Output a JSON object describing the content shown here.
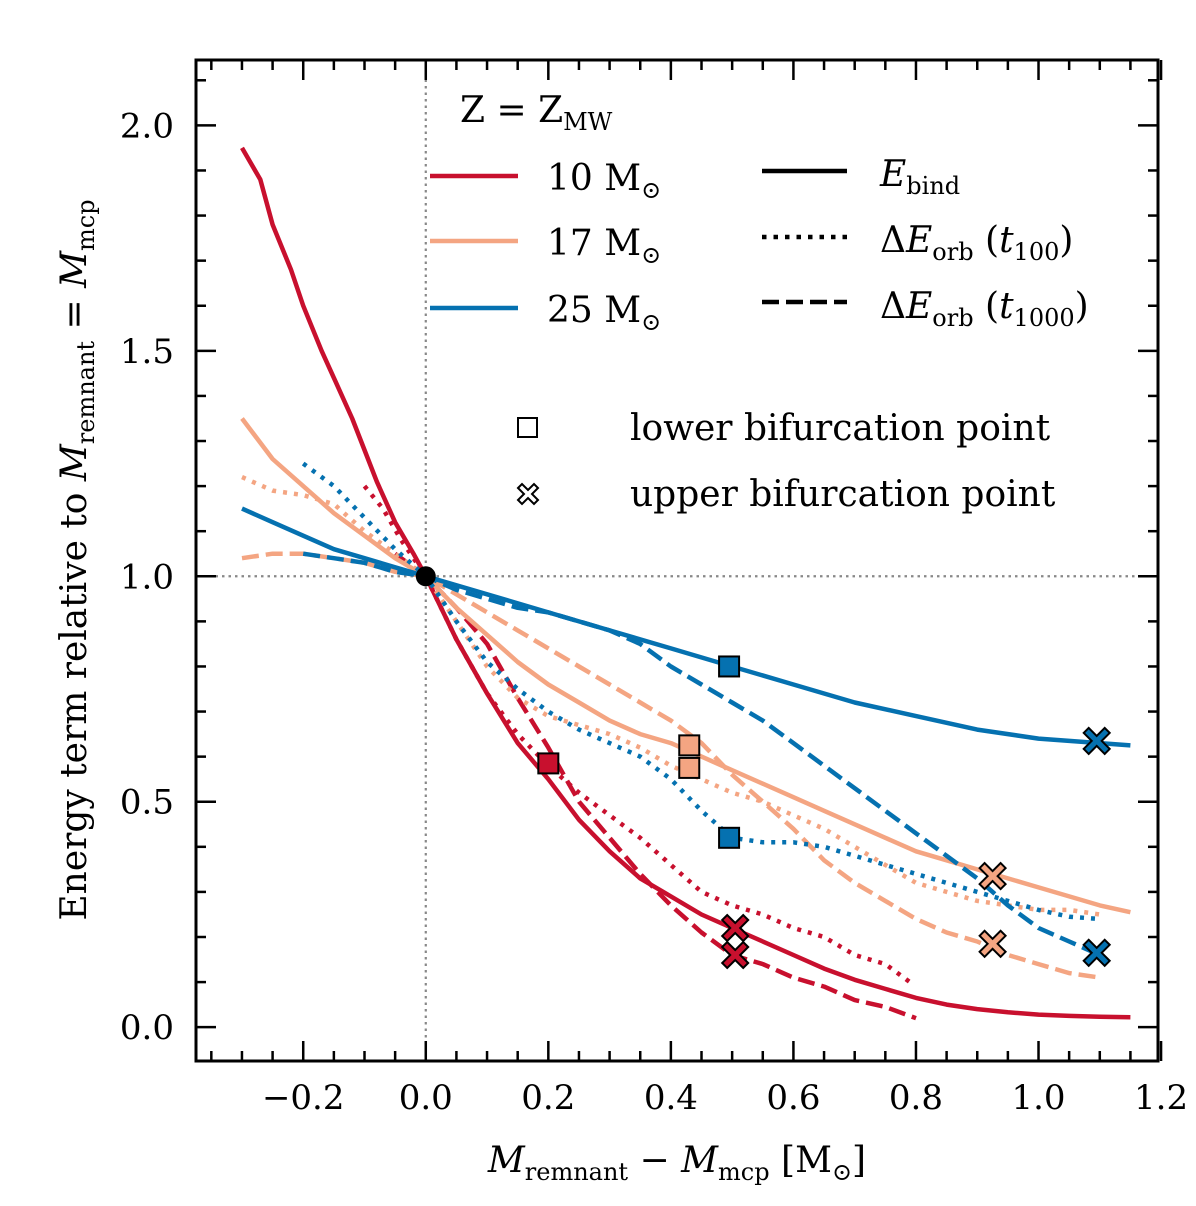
{
  "chart_data": {
    "type": "line",
    "xlabel": "M_remnant − M_mcp [M⊙]",
    "ylabel": "Energy term relative to M_remnant = M_mcp",
    "xlim": [
      -0.375,
      1.195
    ],
    "ylim": [
      -0.075,
      2.145
    ],
    "x_ticks": [
      -0.2,
      0.0,
      0.2,
      0.4,
      0.6,
      0.8,
      1.0,
      1.2
    ],
    "x_tick_labels": [
      "−0.2",
      "0.0",
      "0.2",
      "0.4",
      "0.6",
      "0.8",
      "1.0",
      "1.2"
    ],
    "y_ticks": [
      0.0,
      0.5,
      1.0,
      1.5,
      2.0
    ],
    "y_tick_labels": [
      "0.0",
      "0.5",
      "1.0",
      "1.5",
      "2.0"
    ],
    "reference_lines": {
      "x": 0.0,
      "y": 1.0
    },
    "reference_point": [
      0.0,
      1.0
    ],
    "legend": {
      "title": "Z = Z_MW",
      "mass_entries": [
        {
          "label": "10 M⊙",
          "color": "#c8102e"
        },
        {
          "label": "17 M⊙",
          "color": "#f4a582"
        },
        {
          "label": "25 M⊙",
          "color": "#0571b0"
        }
      ],
      "style_entries": [
        {
          "label": "E_bind",
          "dash": "solid"
        },
        {
          "label": "ΔE_orb (t_100)",
          "dash": "dotted"
        },
        {
          "label": "ΔE_orb (t_1000)",
          "dash": "dashed"
        }
      ],
      "marker_entries": [
        {
          "label": "lower bifurcation point",
          "marker": "square"
        },
        {
          "label": "upper bifurcation point",
          "marker": "x"
        }
      ]
    },
    "series": [
      {
        "name": "10 M⊙ E_bind",
        "color": "#c8102e",
        "dash": "solid",
        "x": [
          -0.3,
          -0.27,
          -0.25,
          -0.22,
          -0.2,
          -0.17,
          -0.15,
          -0.12,
          -0.1,
          -0.08,
          -0.05,
          -0.02,
          0.0,
          0.05,
          0.1,
          0.15,
          0.2,
          0.25,
          0.3,
          0.35,
          0.4,
          0.45,
          0.5,
          0.55,
          0.6,
          0.65,
          0.7,
          0.75,
          0.8,
          0.85,
          0.9,
          0.95,
          1.0,
          1.05,
          1.1,
          1.15
        ],
        "y": [
          1.95,
          1.88,
          1.78,
          1.68,
          1.6,
          1.5,
          1.44,
          1.35,
          1.28,
          1.21,
          1.12,
          1.05,
          1.0,
          0.86,
          0.74,
          0.63,
          0.55,
          0.46,
          0.39,
          0.33,
          0.29,
          0.25,
          0.22,
          0.19,
          0.16,
          0.13,
          0.105,
          0.085,
          0.065,
          0.05,
          0.04,
          0.033,
          0.028,
          0.025,
          0.023,
          0.022
        ]
      },
      {
        "name": "10 M⊙ ΔE_orb (t_100)",
        "color": "#c8102e",
        "dash": "dotted",
        "x": [
          -0.1,
          -0.07,
          -0.04,
          0.0,
          0.05,
          0.1,
          0.15,
          0.2,
          0.25,
          0.3,
          0.35,
          0.4,
          0.45,
          0.5,
          0.55,
          0.6,
          0.65,
          0.7,
          0.75,
          0.79
        ],
        "y": [
          1.2,
          1.15,
          1.08,
          1.0,
          0.86,
          0.74,
          0.65,
          0.58,
          0.52,
          0.47,
          0.42,
          0.36,
          0.3,
          0.27,
          0.25,
          0.22,
          0.2,
          0.16,
          0.14,
          0.1
        ]
      },
      {
        "name": "10 M⊙ ΔE_orb (t_1000)",
        "color": "#c8102e",
        "dash": "dashed",
        "x": [
          -0.05,
          -0.02,
          0.0,
          0.05,
          0.1,
          0.15,
          0.2,
          0.25,
          0.3,
          0.35,
          0.4,
          0.45,
          0.5,
          0.55,
          0.6,
          0.65,
          0.7,
          0.75,
          0.8
        ],
        "y": [
          1.05,
          1.02,
          1.0,
          0.93,
          0.85,
          0.73,
          0.62,
          0.5,
          0.42,
          0.34,
          0.27,
          0.21,
          0.16,
          0.14,
          0.11,
          0.09,
          0.06,
          0.045,
          0.02
        ]
      },
      {
        "name": "17 M⊙ E_bind",
        "color": "#f4a582",
        "dash": "solid",
        "x": [
          -0.3,
          -0.25,
          -0.2,
          -0.15,
          -0.1,
          -0.05,
          0.0,
          0.05,
          0.1,
          0.15,
          0.2,
          0.25,
          0.3,
          0.35,
          0.4,
          0.45,
          0.5,
          0.55,
          0.6,
          0.65,
          0.7,
          0.75,
          0.8,
          0.85,
          0.9,
          0.95,
          1.0,
          1.05,
          1.1,
          1.15
        ],
        "y": [
          1.35,
          1.26,
          1.2,
          1.14,
          1.09,
          1.04,
          1.0,
          0.93,
          0.87,
          0.81,
          0.76,
          0.72,
          0.68,
          0.65,
          0.63,
          0.6,
          0.57,
          0.54,
          0.51,
          0.48,
          0.45,
          0.42,
          0.39,
          0.37,
          0.35,
          0.33,
          0.31,
          0.29,
          0.27,
          0.255
        ]
      },
      {
        "name": "17 M⊙ ΔE_orb (t_100)",
        "color": "#f4a582",
        "dash": "dotted",
        "x": [
          -0.3,
          -0.25,
          -0.2,
          -0.15,
          -0.1,
          -0.05,
          0.0,
          0.05,
          0.1,
          0.15,
          0.2,
          0.25,
          0.3,
          0.35,
          0.4,
          0.45,
          0.5,
          0.55,
          0.6,
          0.65,
          0.7,
          0.75,
          0.8,
          0.85,
          0.9,
          0.95,
          1.0,
          1.05,
          1.1
        ],
        "y": [
          1.22,
          1.19,
          1.18,
          1.16,
          1.1,
          1.05,
          1.0,
          0.9,
          0.8,
          0.73,
          0.69,
          0.67,
          0.65,
          0.62,
          0.58,
          0.55,
          0.52,
          0.5,
          0.47,
          0.44,
          0.4,
          0.36,
          0.32,
          0.3,
          0.28,
          0.27,
          0.26,
          0.26,
          0.25
        ]
      },
      {
        "name": "17 M⊙ ΔE_orb (t_1000)",
        "color": "#f4a582",
        "dash": "dashed",
        "x": [
          -0.3,
          -0.25,
          -0.2,
          -0.15,
          -0.1,
          -0.05,
          0.0,
          0.05,
          0.1,
          0.15,
          0.2,
          0.25,
          0.3,
          0.35,
          0.4,
          0.45,
          0.5,
          0.55,
          0.6,
          0.65,
          0.7,
          0.75,
          0.8,
          0.85,
          0.9,
          0.95,
          1.0,
          1.05,
          1.1
        ],
        "y": [
          1.04,
          1.05,
          1.05,
          1.04,
          1.03,
          1.01,
          1.0,
          0.96,
          0.92,
          0.88,
          0.84,
          0.8,
          0.76,
          0.72,
          0.68,
          0.63,
          0.56,
          0.5,
          0.44,
          0.37,
          0.32,
          0.28,
          0.24,
          0.21,
          0.19,
          0.16,
          0.14,
          0.12,
          0.11
        ]
      },
      {
        "name": "25 M⊙ E_bind",
        "color": "#0571b0",
        "dash": "solid",
        "x": [
          -0.3,
          -0.25,
          -0.2,
          -0.15,
          -0.1,
          -0.05,
          0.0,
          0.1,
          0.2,
          0.3,
          0.4,
          0.5,
          0.6,
          0.7,
          0.8,
          0.9,
          1.0,
          1.1,
          1.15
        ],
        "y": [
          1.15,
          1.12,
          1.09,
          1.06,
          1.04,
          1.02,
          1.0,
          0.96,
          0.92,
          0.88,
          0.84,
          0.8,
          0.76,
          0.72,
          0.69,
          0.66,
          0.64,
          0.63,
          0.625
        ]
      },
      {
        "name": "25 M⊙ ΔE_orb (t_100)",
        "color": "#0571b0",
        "dash": "dotted",
        "x": [
          -0.2,
          -0.15,
          -0.1,
          -0.05,
          0.0,
          0.05,
          0.1,
          0.15,
          0.2,
          0.25,
          0.3,
          0.35,
          0.4,
          0.45,
          0.5,
          0.55,
          0.6,
          0.65,
          0.7,
          0.75,
          0.8,
          0.85,
          0.9,
          0.95,
          1.0,
          1.05,
          1.1
        ],
        "y": [
          1.25,
          1.2,
          1.13,
          1.06,
          1.0,
          0.9,
          0.81,
          0.75,
          0.7,
          0.66,
          0.63,
          0.6,
          0.55,
          0.48,
          0.42,
          0.41,
          0.41,
          0.4,
          0.38,
          0.36,
          0.34,
          0.32,
          0.3,
          0.28,
          0.26,
          0.245,
          0.24
        ]
      },
      {
        "name": "25 M⊙ ΔE_orb (t_1000)",
        "color": "#0571b0",
        "dash": "dashed",
        "x": [
          -0.2,
          -0.15,
          -0.1,
          -0.05,
          0.0,
          0.05,
          0.1,
          0.15,
          0.2,
          0.25,
          0.3,
          0.35,
          0.4,
          0.45,
          0.5,
          0.55,
          0.6,
          0.65,
          0.7,
          0.75,
          0.8,
          0.85,
          0.9,
          0.95,
          1.0,
          1.05,
          1.1
        ],
        "y": [
          1.05,
          1.04,
          1.03,
          1.01,
          1.0,
          0.97,
          0.95,
          0.93,
          0.92,
          0.9,
          0.88,
          0.85,
          0.8,
          0.76,
          0.72,
          0.68,
          0.63,
          0.58,
          0.53,
          0.48,
          0.43,
          0.38,
          0.33,
          0.27,
          0.22,
          0.19,
          0.16
        ]
      }
    ],
    "markers": [
      {
        "type": "square",
        "color": "#c8102e",
        "x": 0.2,
        "y": 0.585
      },
      {
        "type": "x",
        "color": "#c8102e",
        "x": 0.505,
        "y": 0.22
      },
      {
        "type": "x",
        "color": "#c8102e",
        "x": 0.505,
        "y": 0.16
      },
      {
        "type": "square",
        "color": "#f4a582",
        "x": 0.43,
        "y": 0.625
      },
      {
        "type": "square",
        "color": "#f4a582",
        "x": 0.43,
        "y": 0.575
      },
      {
        "type": "x",
        "color": "#f4a582",
        "x": 0.925,
        "y": 0.335
      },
      {
        "type": "x",
        "color": "#f4a582",
        "x": 0.925,
        "y": 0.185
      },
      {
        "type": "square",
        "color": "#0571b0",
        "x": 0.495,
        "y": 0.8
      },
      {
        "type": "square",
        "color": "#0571b0",
        "x": 0.495,
        "y": 0.42
      },
      {
        "type": "x",
        "color": "#0571b0",
        "x": 1.095,
        "y": 0.635
      },
      {
        "type": "x",
        "color": "#0571b0",
        "x": 1.095,
        "y": 0.165
      }
    ]
  }
}
